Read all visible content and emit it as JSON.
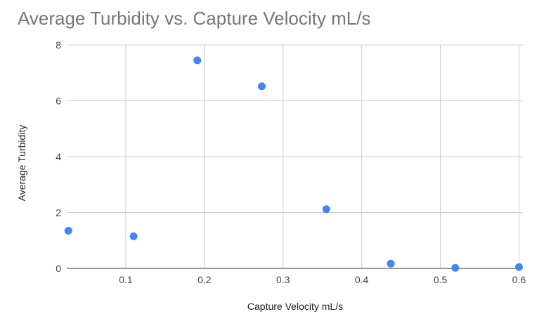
{
  "chart_data": {
    "type": "scatter",
    "title": "Average Turbidity vs. Capture Velocity mL/s",
    "xlabel": "Capture Velocity mL/s",
    "ylabel": "Average Turbidity",
    "xlim": [
      0.025,
      0.605
    ],
    "ylim": [
      0,
      8
    ],
    "x_ticks": [
      "0.1",
      "0.2",
      "0.3",
      "0.4",
      "0.5",
      "0.6"
    ],
    "y_ticks": [
      "0",
      "2",
      "4",
      "6",
      "8"
    ],
    "grid": true,
    "legend": "none",
    "series": [
      {
        "color": "#4285f4",
        "points": [
          {
            "x": 0.027,
            "y": 1.35
          },
          {
            "x": 0.11,
            "y": 1.15
          },
          {
            "x": 0.191,
            "y": 7.45
          },
          {
            "x": 0.273,
            "y": 6.52
          },
          {
            "x": 0.355,
            "y": 2.12
          },
          {
            "x": 0.437,
            "y": 0.17
          },
          {
            "x": 0.519,
            "y": 0.02
          },
          {
            "x": 0.6,
            "y": 0.05
          }
        ]
      }
    ]
  }
}
